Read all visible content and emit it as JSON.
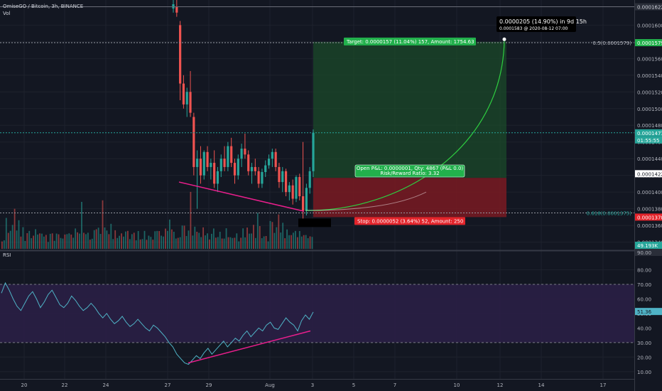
{
  "header": {
    "title": "OmiseGO / Bitcoin, 3h, BINANCE",
    "volume_label": "Vol"
  },
  "rsi_label": "RSI",
  "colors": {
    "background": "#131722",
    "up": "#26a69a",
    "down": "#ef5350",
    "target_zone": "#1b4a2a",
    "stop_zone": "#7a1a22",
    "rsi_band": "#2a1f45",
    "rsi_line": "#4fb3c6",
    "trendline": "#e91e8c",
    "projection": "#2ecc40"
  },
  "chart_data": [
    {
      "type": "candlestick",
      "x_ticks": [
        "20",
        "22",
        "24",
        "27",
        "29",
        "Aug",
        "3",
        "5",
        "7",
        "10",
        "12",
        "14",
        "17"
      ],
      "y_ticks": [
        "0.0001600",
        "0.0001580",
        "0.0001560",
        "0.0001540",
        "0.0001520",
        "0.0001500",
        "0.0001480",
        "0.0001460",
        "0.0001440",
        "0.0001420",
        "0.0001400",
        "0.0001380",
        "0.0001360",
        "0.0001340"
      ],
      "ylim": [
        0.0001332,
        0.0001625
      ],
      "price_labels": {
        "top": "0.0001622",
        "fib_05": "0.0001579",
        "current": "0.0001471",
        "countdown": "01:55:55",
        "sub_current": "0.0001422",
        "stop": "0.0001370",
        "volume": "49.193K"
      },
      "fib_levels": [
        {
          "label": "0.5(0.0001579)",
          "price": 0.0001579
        },
        {
          "label": "0.618(0.0001375)",
          "price": 0.0001375
        }
      ],
      "position": {
        "entry": 0.0001417,
        "target": 0.000158,
        "stop": 0.000137,
        "target_label": "Target: 0.0000157 (11.04%) 157, Amount: 1754.63",
        "open_label": "Open P&L: 0.0000001, Qty: 4867 (P&L 0.0)",
        "ratio_label": "Risk/Reward Ratio: 3.32",
        "stop_label": "Stop: 0.0000052 (3.64%) 52, Amount: 250"
      },
      "projection_label": {
        "line1": "0.0000205 (14.90%) in 9d 15h",
        "line2": "0.0001583 @ 2020-08-12  07:00"
      },
      "candles": [
        [
          0.000162,
          0.000164,
          0.0001615,
          0.0001625
        ],
        [
          0.0001622,
          0.0001635,
          0.000161,
          0.0001615
        ],
        [
          0.00016,
          0.0001605,
          0.000151,
          0.000153
        ],
        [
          0.000153,
          0.000154,
          0.00015,
          0.0001505
        ],
        [
          0.0001505,
          0.0001525,
          0.000149,
          0.000152
        ],
        [
          0.000152,
          0.0001545,
          0.000149,
          0.0001495
        ],
        [
          0.000149,
          0.0001495,
          0.000142,
          0.000143
        ],
        [
          0.000143,
          0.000145,
          0.000138,
          0.000144
        ],
        [
          0.000144,
          0.0001455,
          0.000141,
          0.000142
        ],
        [
          0.000142,
          0.000145,
          0.0001415,
          0.0001448
        ],
        [
          0.0001448,
          0.0001455,
          0.0001425,
          0.000143
        ],
        [
          0.000143,
          0.000144,
          0.0001415,
          0.0001435
        ],
        [
          0.0001435,
          0.000145,
          0.0001405,
          0.000141
        ],
        [
          0.000141,
          0.000143,
          0.00014,
          0.0001425
        ],
        [
          0.0001425,
          0.0001445,
          0.0001418,
          0.000144
        ],
        [
          0.000144,
          0.0001455,
          0.0001425,
          0.000143
        ],
        [
          0.000143,
          0.000146,
          0.0001425,
          0.0001455
        ],
        [
          0.0001455,
          0.0001465,
          0.000143,
          0.0001435
        ],
        [
          0.0001435,
          0.000144,
          0.000141,
          0.000142
        ],
        [
          0.000142,
          0.0001445,
          0.0001415,
          0.000144
        ],
        [
          0.000144,
          0.0001458,
          0.000143,
          0.0001452
        ],
        [
          0.0001452,
          0.000147,
          0.000144,
          0.0001445
        ],
        [
          0.0001445,
          0.000145,
          0.000142,
          0.0001425
        ],
        [
          0.0001425,
          0.0001435,
          0.000141,
          0.000143
        ],
        [
          0.000143,
          0.000144,
          0.000142,
          0.0001425
        ],
        [
          0.0001425,
          0.000143,
          0.0001405,
          0.000141
        ],
        [
          0.000141,
          0.0001428,
          0.0001405,
          0.0001424
        ],
        [
          0.0001424,
          0.0001438,
          0.0001418,
          0.0001432
        ],
        [
          0.0001432,
          0.0001445,
          0.0001428,
          0.000144
        ],
        [
          0.000144,
          0.0001452,
          0.000143,
          0.0001448
        ],
        [
          0.0001448,
          0.0001452,
          0.0001425,
          0.000143
        ],
        [
          0.000143,
          0.0001435,
          0.0001405,
          0.0001412
        ],
        [
          0.0001412,
          0.000143,
          0.00014,
          0.0001425
        ],
        [
          0.0001425,
          0.0001428,
          0.0001395,
          0.00014
        ],
        [
          0.00014,
          0.0001412,
          0.000139,
          0.0001408
        ],
        [
          0.0001408,
          0.0001415,
          0.0001385,
          0.0001392
        ],
        [
          0.0001392,
          0.000142,
          0.0001388,
          0.0001418
        ],
        [
          0.0001418,
          0.0001422,
          0.000139,
          0.0001395
        ],
        [
          0.0001395,
          0.000146,
          0.000136,
          0.0001378
        ],
        [
          0.0001378,
          0.000141,
          0.0001372,
          0.0001405
        ],
        [
          0.0001405,
          0.000143,
          0.0001398,
          0.0001425
        ],
        [
          0.0001425,
          0.0001475,
          0.0001418,
          0.0001471
        ]
      ],
      "volumes": [
        15,
        13,
        38,
        30,
        26,
        28,
        70,
        25,
        32,
        20,
        28,
        16,
        24,
        22,
        20,
        19,
        23,
        25,
        21,
        17,
        20,
        18,
        14,
        23,
        19,
        15,
        22,
        17,
        19,
        14,
        16,
        24,
        20,
        29,
        17,
        25,
        31,
        22,
        55,
        28,
        20,
        18
      ]
    },
    {
      "type": "line",
      "title": "RSI",
      "y_ticks": [
        "80.00",
        "70.00",
        "60.00",
        "50.00",
        "40.00",
        "30.00",
        "20.00",
        "10.00"
      ],
      "ylim": [
        5,
        92
      ],
      "band": [
        30,
        70
      ],
      "current_label": "51.36",
      "top_label": "90.00",
      "values": [
        64,
        71,
        66,
        60,
        55,
        52,
        57,
        62,
        65,
        60,
        54,
        58,
        63,
        66,
        61,
        56,
        54,
        57,
        62,
        59,
        55,
        52,
        54,
        57,
        54,
        50,
        47,
        50,
        46,
        43,
        45,
        48,
        44,
        41,
        43,
        46,
        43,
        40,
        38,
        42,
        40,
        37,
        34,
        30,
        27,
        22,
        19,
        16,
        15,
        18,
        21,
        19,
        23,
        26,
        22,
        25,
        28,
        31,
        27,
        30,
        33,
        31,
        35,
        38,
        34,
        37,
        40,
        38,
        42,
        44,
        40,
        39,
        43,
        47,
        44,
        42,
        38,
        45,
        49,
        46,
        51
      ]
    }
  ]
}
